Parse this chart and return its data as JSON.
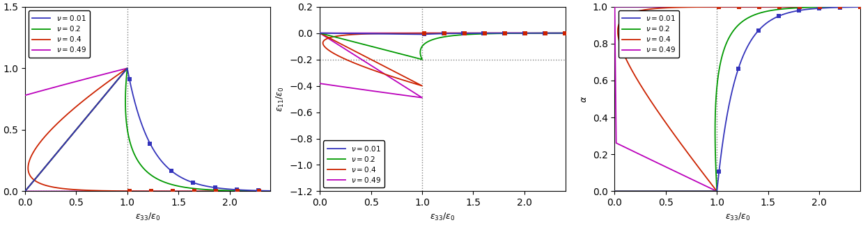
{
  "nu_values": [
    0.01,
    0.2,
    0.4,
    0.49
  ],
  "colors": [
    "#3333BB",
    "#009900",
    "#CC2200",
    "#BB00BB"
  ],
  "xlim": [
    0.0,
    2.4
  ],
  "plot1_ylim": [
    0.0,
    1.5
  ],
  "plot2_ylim": [
    -1.2,
    0.2
  ],
  "plot3_ylim": [
    0.0,
    1.0
  ],
  "plot1_yticks": [
    0.0,
    0.5,
    1.0,
    1.5
  ],
  "plot2_yticks": [
    -1.2,
    -1.0,
    -0.8,
    -0.6,
    -0.4,
    -0.2,
    0.0,
    0.2
  ],
  "plot3_yticks": [
    0.0,
    0.2,
    0.4,
    0.6,
    0.8,
    1.0
  ],
  "xticks": [
    0.0,
    0.5,
    1.0,
    1.5,
    2.0
  ],
  "xlabel": "$\\varepsilon_{33}/\\varepsilon_0$",
  "ylabel2": "$\\varepsilon_{11}/\\varepsilon_0$",
  "ylabel3": "$\\alpha$",
  "softening_B": 4.0,
  "kappa_max": 6.0,
  "n_pts": 5000,
  "linewidth": 1.3,
  "marker_size": 4.5,
  "figsize": [
    12.39,
    3.24
  ],
  "dpi": 100
}
